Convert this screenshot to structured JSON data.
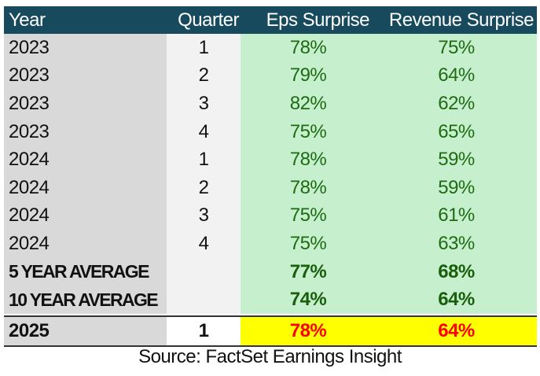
{
  "colors": {
    "header_bg": "#174a5c",
    "year_col_bg": "#d9d9d9",
    "quarter_col_bg": "#f2f2f2",
    "surprise_bg": "#c6efce",
    "surprise_text": "#1e6b12",
    "highlight_bg": "#ffff00",
    "highlight_text": "#ff0000"
  },
  "table": {
    "headers": {
      "year": "Year",
      "quarter": "Quarter",
      "eps": "Eps Surprise",
      "revenue": "Revenue Surprise"
    },
    "rows": [
      {
        "year": "2023",
        "quarter": "1",
        "eps": "78%",
        "revenue": "75%"
      },
      {
        "year": "2023",
        "quarter": "2",
        "eps": "79%",
        "revenue": "64%"
      },
      {
        "year": "2023",
        "quarter": "3",
        "eps": "82%",
        "revenue": "62%"
      },
      {
        "year": "2023",
        "quarter": "4",
        "eps": "75%",
        "revenue": "65%"
      },
      {
        "year": "2024",
        "quarter": "1",
        "eps": "78%",
        "revenue": "59%"
      },
      {
        "year": "2024",
        "quarter": "2",
        "eps": "78%",
        "revenue": "59%"
      },
      {
        "year": "2024",
        "quarter": "3",
        "eps": "75%",
        "revenue": "61%"
      },
      {
        "year": "2024",
        "quarter": "4",
        "eps": "75%",
        "revenue": "63%"
      }
    ],
    "averages": [
      {
        "label": "5 YEAR AVERAGE",
        "eps": "77%",
        "revenue": "68%"
      },
      {
        "label": "10 YEAR AVERAGE",
        "eps": "74%",
        "revenue": "64%"
      }
    ],
    "current": {
      "year": "2025",
      "quarter": "1",
      "eps": "78%",
      "revenue": "64%"
    }
  },
  "source": "Source: FactSet Earnings Insight"
}
